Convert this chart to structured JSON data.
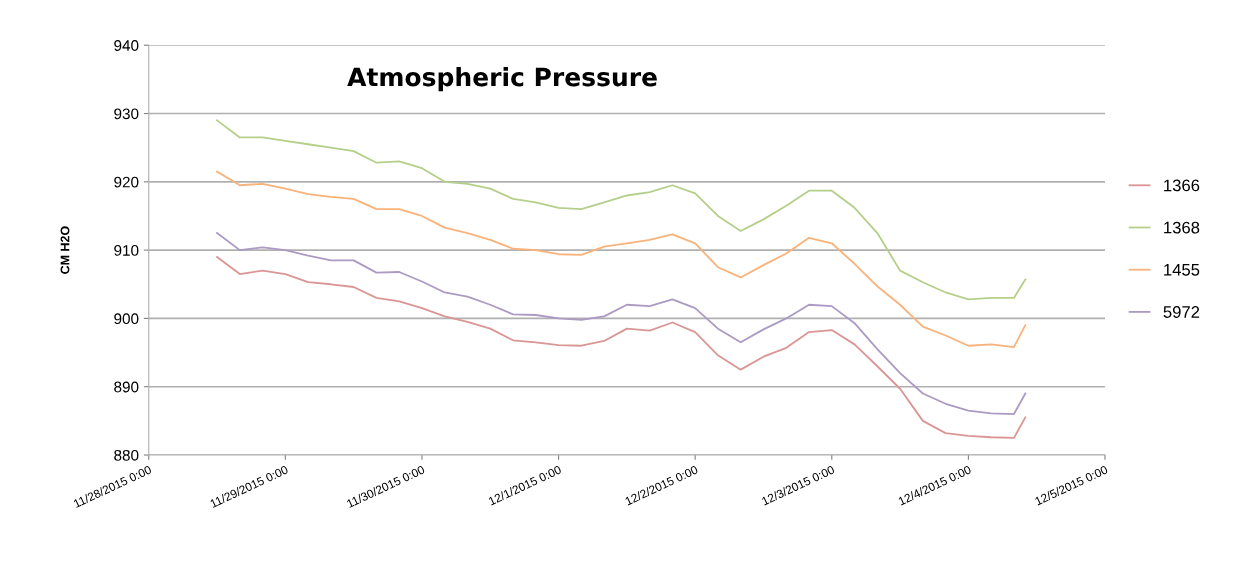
{
  "chart_data": {
    "type": "line",
    "title": "Atmospheric Pressure",
    "ylabel": "CM H2O",
    "x": [
      "2015-11-28T12:00",
      "2015-11-28T16:00",
      "2015-11-28T20:00",
      "2015-11-29T00:00",
      "2015-11-29T04:00",
      "2015-11-29T08:00",
      "2015-11-29T12:00",
      "2015-11-29T16:00",
      "2015-11-29T20:00",
      "2015-11-30T00:00",
      "2015-11-30T04:00",
      "2015-11-30T08:00",
      "2015-11-30T12:00",
      "2015-11-30T16:00",
      "2015-11-30T20:00",
      "2015-12-01T00:00",
      "2015-12-01T04:00",
      "2015-12-01T08:00",
      "2015-12-01T12:00",
      "2015-12-01T16:00",
      "2015-12-01T20:00",
      "2015-12-02T00:00",
      "2015-12-02T04:00",
      "2015-12-02T08:00",
      "2015-12-02T12:00",
      "2015-12-02T16:00",
      "2015-12-02T20:00",
      "2015-12-03T00:00",
      "2015-12-03T04:00",
      "2015-12-03T08:00",
      "2015-12-03T12:00",
      "2015-12-03T16:00",
      "2015-12-03T20:00",
      "2015-12-04T00:00",
      "2015-12-04T04:00",
      "2015-12-04T08:00",
      "2015-12-04T10:00"
    ],
    "series": [
      {
        "name": "1366",
        "color": "#d99694",
        "values": [
          909,
          906.5,
          907,
          906.5,
          905.3,
          905,
          904.6,
          903,
          902.5,
          901.5,
          900.3,
          899.5,
          898.5,
          896.8,
          896.5,
          896.1,
          896,
          896.7,
          898.5,
          898.2,
          899.4,
          898,
          894.6,
          892.5,
          894.4,
          895.7,
          898,
          898.3,
          896.2,
          893,
          889.7,
          885,
          883.2,
          882.8,
          882.6,
          882.5,
          885.5
        ]
      },
      {
        "name": "1368",
        "color": "#b5cf8a",
        "values": [
          929,
          926.5,
          926.5,
          926,
          925.5,
          925,
          924.5,
          922.8,
          923,
          922,
          920,
          919.7,
          919,
          917.5,
          917,
          916.2,
          916,
          917,
          918,
          918.5,
          919.5,
          918.3,
          915,
          912.8,
          914.5,
          916.5,
          918.7,
          918.7,
          916.2,
          912.5,
          907,
          905.3,
          903.8,
          902.8,
          903,
          903,
          905.7
        ]
      },
      {
        "name": "1455",
        "color": "#f9b27a",
        "values": [
          921.5,
          919.5,
          919.7,
          919,
          918.2,
          917.8,
          917.5,
          916,
          916,
          915,
          913.3,
          912.5,
          911.5,
          910.2,
          910,
          909.4,
          909.3,
          910.5,
          911,
          911.5,
          912.3,
          911,
          907.5,
          906,
          907.8,
          909.5,
          911.8,
          911,
          908,
          904.7,
          902,
          898.8,
          897.5,
          896,
          896.2,
          895.8,
          899
        ]
      },
      {
        "name": "5972",
        "color": "#ab9ac4",
        "values": [
          912.5,
          910,
          910.4,
          910,
          909.2,
          908.5,
          908.5,
          906.7,
          906.8,
          905.4,
          903.8,
          903.2,
          902,
          900.6,
          900.5,
          900,
          899.8,
          900.3,
          902,
          901.8,
          902.8,
          901.5,
          898.5,
          896.5,
          898.4,
          900,
          902,
          901.8,
          899.3,
          895.5,
          892,
          889,
          887.5,
          886.5,
          886.1,
          886,
          889
        ]
      }
    ],
    "xlim": [
      "2015-11-28T00:00",
      "2015-12-05T00:00"
    ],
    "xticks": [
      {
        "value": "2015-11-28T00:00",
        "label": "11/28/2015 0:00"
      },
      {
        "value": "2015-11-29T00:00",
        "label": "11/29/2015 0:00"
      },
      {
        "value": "2015-11-30T00:00",
        "label": "11/30/2015 0:00"
      },
      {
        "value": "2015-12-01T00:00",
        "label": "12/1/2015 0:00"
      },
      {
        "value": "2015-12-02T00:00",
        "label": "12/2/2015 0:00"
      },
      {
        "value": "2015-12-03T00:00",
        "label": "12/3/2015 0:00"
      },
      {
        "value": "2015-12-04T00:00",
        "label": "12/4/2015 0:00"
      },
      {
        "value": "2015-12-05T00:00",
        "label": "12/5/2015 0:00"
      }
    ],
    "ylim": [
      880,
      940
    ],
    "yticks": [
      880,
      890,
      900,
      910,
      920,
      930,
      940
    ],
    "grid": "y",
    "legend": "right",
    "marker": "none",
    "line_style": "solid"
  }
}
